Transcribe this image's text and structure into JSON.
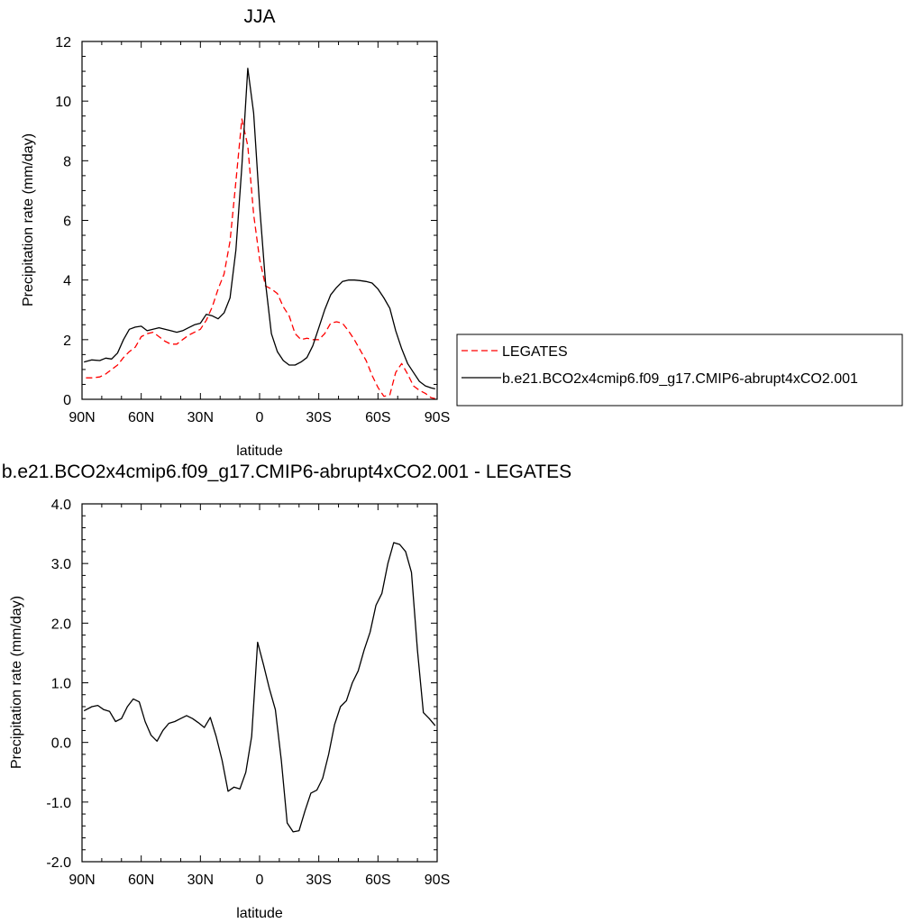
{
  "chart_data": [
    {
      "type": "line",
      "title": "JJA",
      "xlabel": "latitude",
      "ylabel": "Precipitation rate (mm/day)",
      "xlim": [
        90,
        -90
      ],
      "ylim": [
        0,
        12
      ],
      "x_ticks": [
        {
          "value": 90,
          "label": "90N"
        },
        {
          "value": 60,
          "label": "60N"
        },
        {
          "value": 30,
          "label": "30N"
        },
        {
          "value": 0,
          "label": "0"
        },
        {
          "value": -30,
          "label": "30S"
        },
        {
          "value": -60,
          "label": "60S"
        },
        {
          "value": -90,
          "label": "90S"
        }
      ],
      "y_ticks": [
        {
          "value": 0,
          "label": "0"
        },
        {
          "value": 2,
          "label": "2"
        },
        {
          "value": 4,
          "label": "4"
        },
        {
          "value": 6,
          "label": "6"
        },
        {
          "value": 8,
          "label": "8"
        },
        {
          "value": 10,
          "label": "10"
        },
        {
          "value": 12,
          "label": "12"
        }
      ],
      "legend": "right",
      "series": [
        {
          "name": "LEGATES",
          "color": "#ff0000",
          "dash": "dashed",
          "x": [
            88,
            85,
            81,
            78,
            75,
            72,
            69,
            66,
            63,
            60,
            57,
            54,
            51,
            48,
            45,
            42,
            39,
            36,
            33,
            30,
            27,
            24,
            21,
            18,
            15,
            12,
            9,
            6,
            3,
            0,
            -3,
            -6,
            -9,
            -12,
            -15,
            -18,
            -21,
            -24,
            -27,
            -30,
            -33,
            -36,
            -39,
            -42,
            -45,
            -48,
            -51,
            -54,
            -57,
            -60,
            -63,
            -66,
            -69,
            -72,
            -75,
            -78,
            -81,
            -84,
            -87,
            -89
          ],
          "y": [
            0.72,
            0.72,
            0.75,
            0.85,
            1.0,
            1.15,
            1.4,
            1.6,
            1.75,
            2.1,
            2.2,
            2.25,
            2.1,
            1.95,
            1.85,
            1.85,
            2.0,
            2.15,
            2.25,
            2.35,
            2.65,
            3.1,
            3.7,
            4.2,
            5.3,
            7.3,
            9.4,
            8.5,
            6.2,
            4.7,
            3.8,
            3.7,
            3.55,
            3.1,
            2.8,
            2.2,
            2.0,
            2.05,
            2.0,
            2.0,
            2.2,
            2.55,
            2.6,
            2.55,
            2.3,
            2.0,
            1.65,
            1.3,
            0.8,
            0.4,
            0.1,
            0.15,
            0.9,
            1.2,
            0.85,
            0.45,
            0.3,
            0.2,
            0.05,
            0.02
          ]
        },
        {
          "name": "b.e21.BCO2x4cmip6.f09_g17.CMIP6-abrupt4xCO2.001",
          "color": "#000000",
          "dash": "solid",
          "x": [
            89,
            85,
            81,
            78,
            75,
            72,
            69,
            66,
            63,
            60,
            57,
            54,
            51,
            48,
            45,
            42,
            39,
            36,
            33,
            30,
            27,
            24,
            21,
            18,
            15,
            12,
            9,
            6,
            3,
            0,
            -3,
            -6,
            -9,
            -12,
            -15,
            -18,
            -21,
            -24,
            -27,
            -30,
            -33,
            -36,
            -39,
            -42,
            -45,
            -48,
            -51,
            -54,
            -57,
            -60,
            -63,
            -66,
            -69,
            -72,
            -75,
            -78,
            -81,
            -84,
            -87,
            -89
          ],
          "y": [
            1.25,
            1.32,
            1.3,
            1.38,
            1.35,
            1.55,
            2.0,
            2.35,
            2.42,
            2.45,
            2.3,
            2.35,
            2.4,
            2.35,
            2.3,
            2.25,
            2.3,
            2.4,
            2.5,
            2.55,
            2.85,
            2.8,
            2.7,
            2.9,
            3.4,
            5.0,
            7.8,
            11.1,
            9.6,
            6.5,
            3.9,
            2.2,
            1.6,
            1.3,
            1.15,
            1.15,
            1.25,
            1.4,
            1.8,
            2.4,
            3.0,
            3.5,
            3.75,
            3.95,
            4.0,
            4.0,
            3.98,
            3.95,
            3.9,
            3.7,
            3.4,
            3.05,
            2.3,
            1.7,
            1.2,
            0.9,
            0.6,
            0.45,
            0.38,
            0.35
          ]
        }
      ]
    },
    {
      "type": "line",
      "title": "b.e21.BCO2x4cmip6.f09_g17.CMIP6-abrupt4xCO2.001 - LEGATES",
      "xlabel": "latitude",
      "ylabel": "Precipitation rate (mm/day)",
      "xlim": [
        90,
        -90
      ],
      "ylim": [
        -2,
        4
      ],
      "x_ticks": [
        {
          "value": 90,
          "label": "90N"
        },
        {
          "value": 60,
          "label": "60N"
        },
        {
          "value": 30,
          "label": "30N"
        },
        {
          "value": 0,
          "label": "0"
        },
        {
          "value": -30,
          "label": "30S"
        },
        {
          "value": -60,
          "label": "60S"
        },
        {
          "value": -90,
          "label": "90S"
        }
      ],
      "y_ticks": [
        {
          "value": -2,
          "label": "-2.0"
        },
        {
          "value": -1,
          "label": "-1.0"
        },
        {
          "value": 0,
          "label": "0.0"
        },
        {
          "value": 1,
          "label": "1.0"
        },
        {
          "value": 2,
          "label": "2.0"
        },
        {
          "value": 3,
          "label": "3.0"
        },
        {
          "value": 4,
          "label": "4.0"
        }
      ],
      "series": [
        {
          "color": "#000000",
          "dash": "solid",
          "x": [
            89,
            85,
            82,
            79,
            76,
            73,
            70,
            67,
            64,
            61,
            58,
            55,
            52,
            49,
            46,
            43,
            40,
            37,
            34,
            31,
            28,
            25,
            22,
            19,
            16,
            13,
            10,
            7,
            4,
            1,
            -2,
            -5,
            -8,
            -11,
            -14,
            -17,
            -20,
            -23,
            -26,
            -29,
            -32,
            -35,
            -38,
            -41,
            -44,
            -47,
            -50,
            -53,
            -56,
            -59,
            -62,
            -65,
            -68,
            -71,
            -74,
            -77,
            -80,
            -83,
            -86,
            -89
          ],
          "y": [
            0.53,
            0.6,
            0.62,
            0.55,
            0.52,
            0.35,
            0.4,
            0.6,
            0.73,
            0.68,
            0.35,
            0.12,
            0.02,
            0.2,
            0.32,
            0.35,
            0.4,
            0.45,
            0.4,
            0.33,
            0.25,
            0.42,
            0.1,
            -0.3,
            -0.82,
            -0.75,
            -0.78,
            -0.5,
            0.1,
            1.68,
            1.3,
            0.9,
            0.55,
            -0.3,
            -1.35,
            -1.5,
            -1.48,
            -1.15,
            -0.85,
            -0.8,
            -0.6,
            -0.2,
            0.3,
            0.6,
            0.7,
            1.0,
            1.2,
            1.55,
            1.85,
            2.3,
            2.5,
            3.0,
            3.35,
            3.32,
            3.2,
            2.85,
            1.55,
            0.5,
            0.4,
            0.28
          ]
        }
      ]
    }
  ]
}
